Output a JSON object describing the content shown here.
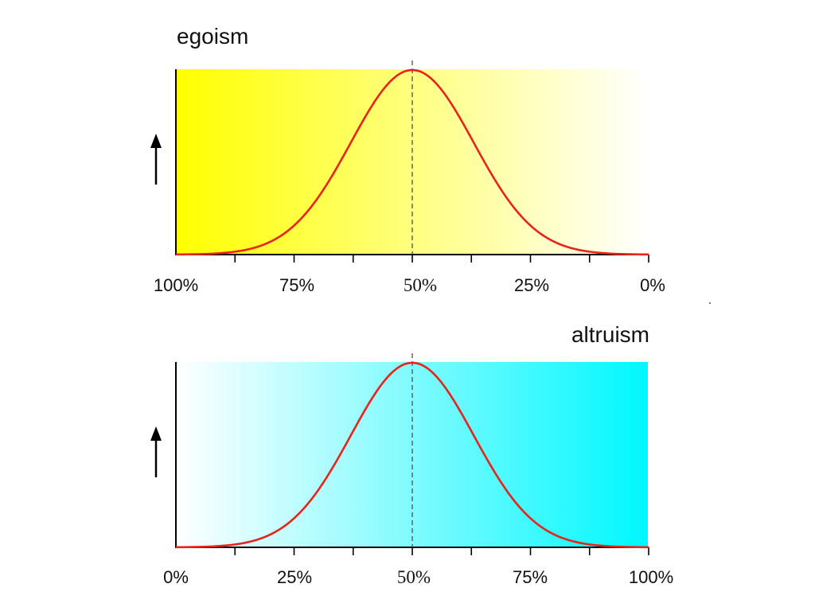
{
  "chart_data": [
    {
      "type": "line",
      "title": "egoism",
      "x_tick_labels": [
        "100%",
        "75%",
        "50%",
        "25%",
        "0%"
      ],
      "x": [
        100,
        87.5,
        75,
        62.5,
        50,
        37.5,
        25,
        12.5,
        0
      ],
      "series": [
        {
          "values": [
            0.01,
            0.04,
            0.22,
            0.64,
            1.0,
            0.64,
            0.22,
            0.04,
            0.01
          ],
          "color": "#e8231a"
        }
      ],
      "xlim": [
        100,
        0
      ],
      "ylim": [
        0,
        1
      ],
      "gaussian": {
        "mean": 50,
        "sd": 13,
        "peak": 1.0
      },
      "reference_line": {
        "x": 50,
        "style": "dashed"
      },
      "y_axis_indicator": "up-arrow",
      "background_gradient": {
        "from": "#ffff00",
        "to": "#ffffff",
        "direction": "left-to-right"
      },
      "grid": false
    },
    {
      "type": "line",
      "title": "altruism",
      "x_tick_labels": [
        "0%",
        "25%",
        "50%",
        "75%",
        "100%"
      ],
      "x": [
        0,
        12.5,
        25,
        37.5,
        50,
        62.5,
        75,
        87.5,
        100
      ],
      "series": [
        {
          "values": [
            0.01,
            0.04,
            0.22,
            0.64,
            1.0,
            0.64,
            0.22,
            0.04,
            0.01
          ],
          "color": "#e8231a"
        }
      ],
      "xlim": [
        0,
        100
      ],
      "ylim": [
        0,
        1
      ],
      "gaussian": {
        "mean": 50,
        "sd": 13,
        "peak": 1.0
      },
      "reference_line": {
        "x": 50,
        "style": "dashed"
      },
      "y_axis_indicator": "up-arrow",
      "background_gradient": {
        "from": "#ffffff",
        "to": "#00f7ff",
        "direction": "left-to-right"
      },
      "grid": false
    }
  ]
}
